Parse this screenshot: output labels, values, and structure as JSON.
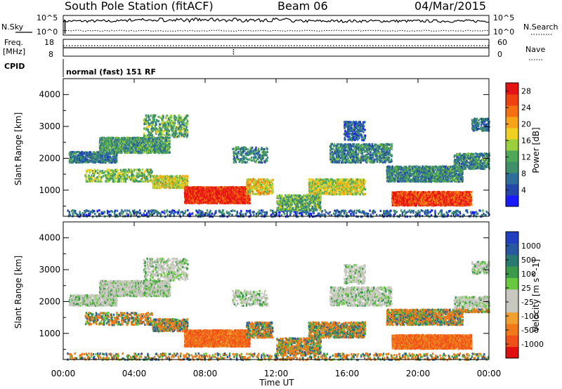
{
  "header": {
    "station": "South Pole Station (fitACF)",
    "beam": "Beam 06",
    "date": "04/Mar/2015"
  },
  "panels": {
    "nsky_label": "N.Sky",
    "nsearch_label": "N.Search",
    "noise_ticks": [
      "10^5",
      "10^0"
    ],
    "freq_label_1": "Freq.",
    "freq_label_2": "[MHz]",
    "freq_ticks": [
      "18",
      "8"
    ],
    "nave_label": "Nave",
    "nave_ticks": [
      "60",
      "0"
    ],
    "cpid_label": "CPID",
    "cpid_text": "normal (fast) 151 RF"
  },
  "colors": {
    "power_scale": [
      "#1a1aff",
      "#2448a8",
      "#2f6e9a",
      "#3f8f6a",
      "#4fa857",
      "#9ccf3c",
      "#f0d020",
      "#f6a41a",
      "#f47010",
      "#ee4010",
      "#e51414"
    ],
    "velocity_scale": [
      "#e00e0e",
      "#f0501a",
      "#f07a1a",
      "#f0a030",
      "#c8c8c0",
      "#c8c8c0",
      "#68c840",
      "#3a9a4a",
      "#2a7870",
      "#2858a0",
      "#2040c0"
    ]
  },
  "chart_data": [
    {
      "type": "heatmap",
      "title": "",
      "xlabel": "Time UT",
      "ylabel": "Slant Range [km]",
      "x_ticks": [
        "00:00",
        "04:00",
        "08:00",
        "12:00",
        "16:00",
        "20:00",
        "00:00"
      ],
      "y_ticks": [
        "1000",
        "2000",
        "3000",
        "4000"
      ],
      "ylim": [
        180,
        4500
      ],
      "xlim_hours": [
        0,
        24
      ],
      "colorbar": {
        "label": "Power [dB]",
        "ticks": [
          "4",
          "8",
          "12",
          "16",
          "20",
          "24",
          "28"
        ],
        "range": [
          0,
          30
        ]
      }
    },
    {
      "type": "heatmap",
      "title": "",
      "xlabel": "Time UT",
      "ylabel": "Slant Range [km]",
      "x_ticks": [
        "00:00",
        "04:00",
        "08:00",
        "12:00",
        "16:00",
        "20:00",
        "00:00"
      ],
      "y_ticks": [
        "1000",
        "2000",
        "3000",
        "4000"
      ],
      "ylim": [
        180,
        4500
      ],
      "xlim_hours": [
        0,
        24
      ],
      "colorbar": {
        "label": "Velocity [m s^-1]",
        "ticks": [
          "1000",
          "500",
          "100",
          "25",
          "-25",
          "-100",
          "-500",
          "-1000"
        ]
      }
    }
  ]
}
